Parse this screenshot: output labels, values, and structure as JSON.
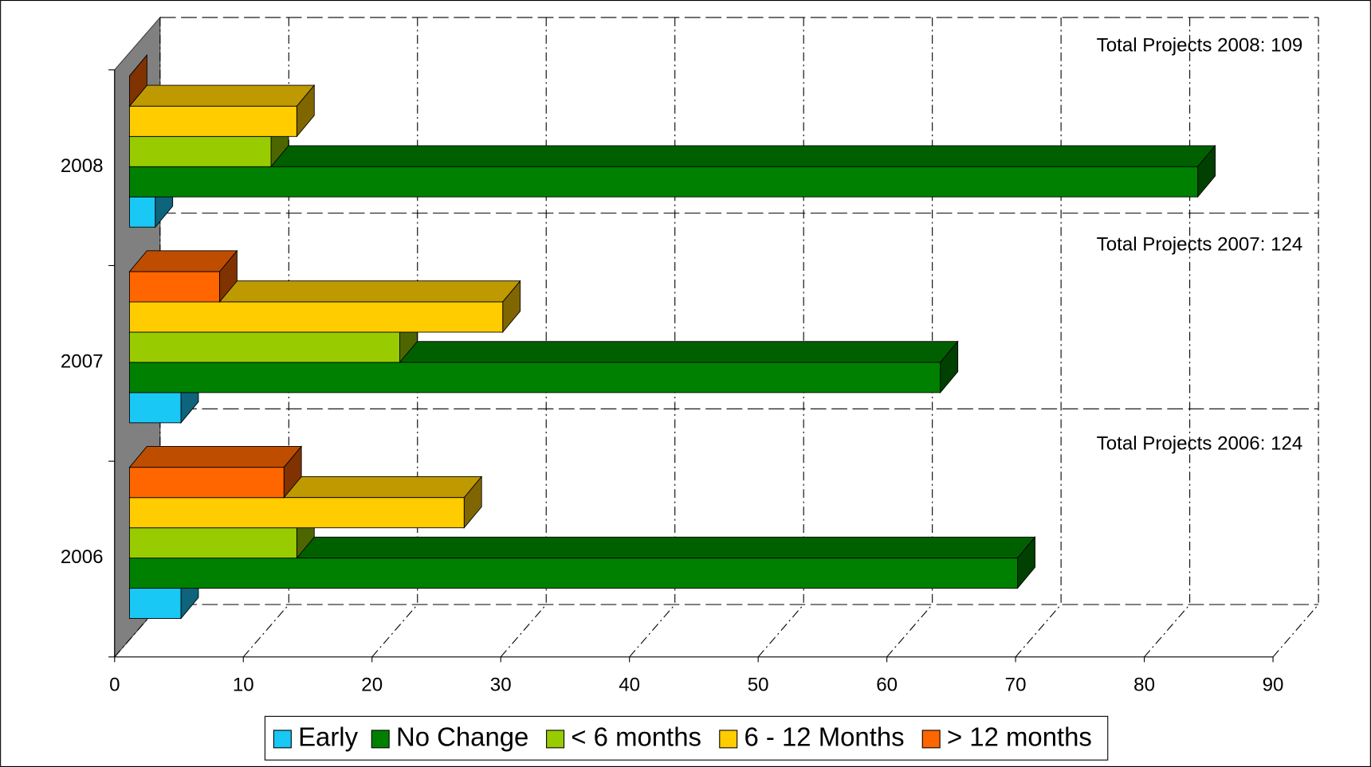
{
  "chart_data": {
    "type": "bar3d-horizontal",
    "categories": [
      "2006",
      "2007",
      "2008"
    ],
    "series": [
      {
        "name": "Early",
        "color": "#19c8f5",
        "values": [
          4,
          4,
          2
        ]
      },
      {
        "name": "No Change",
        "color": "#008000",
        "values": [
          69,
          63,
          83
        ]
      },
      {
        "name": "< 6 months",
        "color": "#99cc00",
        "values": [
          13,
          21,
          11
        ]
      },
      {
        "name": "6 - 12 Months",
        "color": "#ffcc00",
        "values": [
          26,
          29,
          13
        ]
      },
      {
        "name": "> 12 months",
        "color": "#ff6600",
        "values": [
          12,
          7,
          0
        ]
      }
    ],
    "annotations": [
      "Total Projects 2008: 109",
      "Total Projects 2007: 124",
      "Total Projects 2006: 124"
    ],
    "xlim": [
      0,
      90
    ],
    "xticks": [
      0,
      10,
      20,
      30,
      40,
      50,
      60,
      70,
      80,
      90
    ],
    "grid": true,
    "legend": "bottom"
  }
}
